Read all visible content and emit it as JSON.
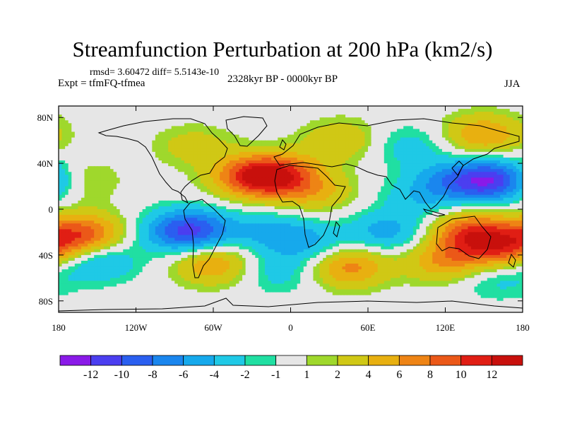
{
  "header": {
    "title": "Streamfunction Perturbation at 200 hPa (km2/s)",
    "stats": "rmsd= 3.60472 diff= 5.5143e-10",
    "experiment": "Expt = tfmFQ-tfmea",
    "period": "2328kyr BP - 0000kyr BP",
    "season": "JJA"
  },
  "chart_data": {
    "type": "heatmap",
    "title": "Streamfunction Perturbation at 200 hPa (km2/s)",
    "xlabel": "",
    "ylabel": "",
    "x_range": [
      -180,
      180
    ],
    "y_range": [
      -90,
      90
    ],
    "x_ticks": [
      {
        "value": -180,
        "label": "180"
      },
      {
        "value": -120,
        "label": "120W"
      },
      {
        "value": -60,
        "label": "60W"
      },
      {
        "value": 0,
        "label": "0"
      },
      {
        "value": 60,
        "label": "60E"
      },
      {
        "value": 120,
        "label": "120E"
      },
      {
        "value": 180,
        "label": "180"
      }
    ],
    "y_ticks": [
      {
        "value": 80,
        "label": "80N"
      },
      {
        "value": 40,
        "label": "40N"
      },
      {
        "value": 0,
        "label": "0"
      },
      {
        "value": -40,
        "label": "40S"
      },
      {
        "value": -80,
        "label": "80S"
      }
    ],
    "contour_levels": [
      "-12",
      "-10",
      "-8",
      "-6",
      "-4",
      "-2",
      "-1",
      "1",
      "2",
      "4",
      "6",
      "8",
      "10",
      "12"
    ],
    "level_colors": [
      "#8a1ae8",
      "#4b3ef0",
      "#2a5ff0",
      "#1a86ee",
      "#16a9ec",
      "#1fc9e6",
      "#20dfa2",
      "#e6e6e6",
      "#9fd82c",
      "#d0c815",
      "#e8b010",
      "#ee8415",
      "#eb5818",
      "#e01e14",
      "#c8100c"
    ],
    "anomaly_centers": [
      {
        "lon": -165,
        "lat": 25,
        "value": 3
      },
      {
        "lon": -160,
        "lat": -22,
        "value": 9
      },
      {
        "lon": -150,
        "lat": -45,
        "value": -5
      },
      {
        "lon": -90,
        "lat": -20,
        "value": -5
      },
      {
        "lon": -72,
        "lat": -18,
        "value": -7
      },
      {
        "lon": -60,
        "lat": -48,
        "value": 6
      },
      {
        "lon": -75,
        "lat": 55,
        "value": 3
      },
      {
        "lon": -30,
        "lat": 28,
        "value": 9
      },
      {
        "lon": -8,
        "lat": 30,
        "value": 8
      },
      {
        "lon": 20,
        "lat": 15,
        "value": 4
      },
      {
        "lon": -15,
        "lat": -20,
        "value": -4
      },
      {
        "lon": 15,
        "lat": -30,
        "value": -4
      },
      {
        "lon": -10,
        "lat": -55,
        "value": -3
      },
      {
        "lon": 45,
        "lat": -50,
        "value": 7
      },
      {
        "lon": 75,
        "lat": -20,
        "value": -5
      },
      {
        "lon": 90,
        "lat": 55,
        "value": -3
      },
      {
        "lon": 100,
        "lat": 10,
        "value": -3
      },
      {
        "lon": 125,
        "lat": 25,
        "value": -5
      },
      {
        "lon": 158,
        "lat": 25,
        "value": -11
      },
      {
        "lon": 150,
        "lat": 65,
        "value": 6
      },
      {
        "lon": 140,
        "lat": -20,
        "value": 9
      },
      {
        "lon": 165,
        "lat": -35,
        "value": 8
      },
      {
        "lon": 120,
        "lat": -45,
        "value": 6
      },
      {
        "lon": 40,
        "lat": 60,
        "value": 4
      },
      {
        "lon": 160,
        "lat": -60,
        "value": -3
      }
    ],
    "grid": false,
    "legend": "bottom"
  }
}
